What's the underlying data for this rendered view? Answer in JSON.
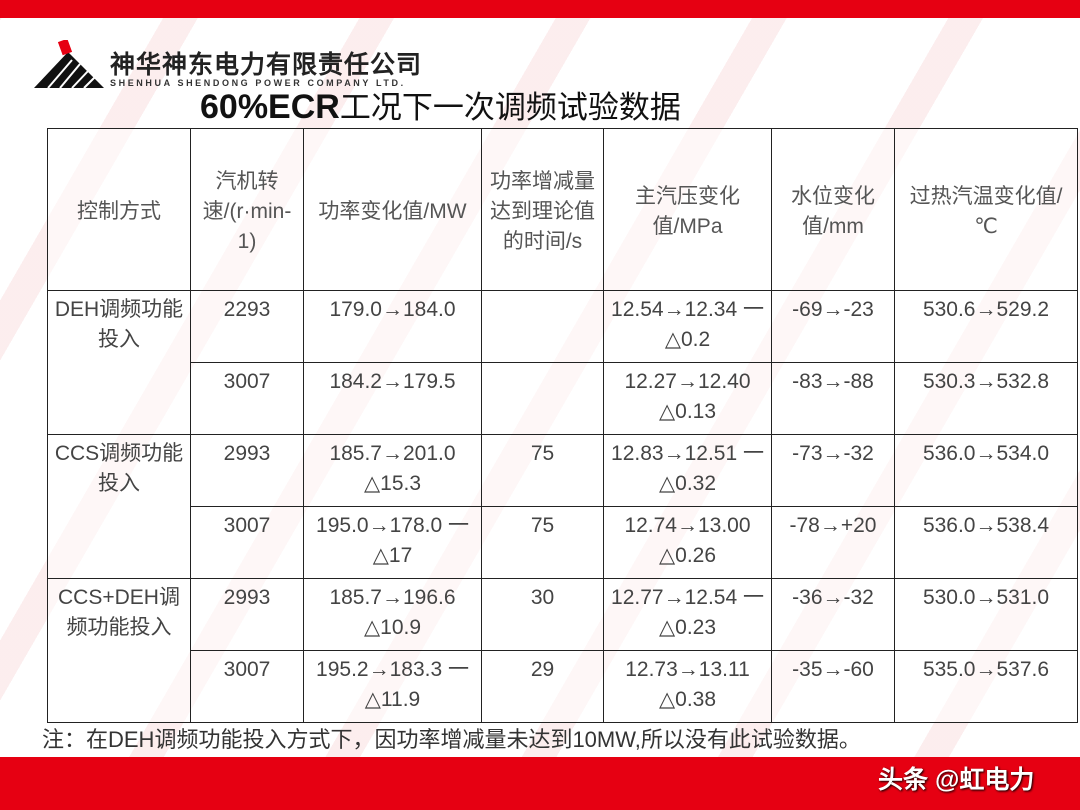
{
  "header": {
    "company_cn": "神华神东电力有限责任公司",
    "company_en": "SHENHUA SHENDONG POWER COMPANY LTD.",
    "title_bold": "60%ECR",
    "title_rest": "工况下一次调频试验数据"
  },
  "table": {
    "headers": [
      "控制方式",
      "汽机转速/(r·min-1)",
      "功率变化值/MW",
      "功率增减量达到理论值的时间/s",
      "主汽压变化值/MPa",
      "水位变化值/mm",
      "过热汽温变化值/℃"
    ],
    "groups": [
      {
        "mode": "DEH调频功能投入",
        "rows": [
          [
            "2293",
            "179.0→184.0",
            "",
            "12.54→12.34 一 △0.2",
            "-69→-23",
            "530.6→529.2"
          ],
          [
            "3007",
            "184.2→179.5",
            "",
            "12.27→12.40 △0.13",
            "-83→-88",
            "530.3→532.8"
          ]
        ]
      },
      {
        "mode": "CCS调频功能投入",
        "rows": [
          [
            "2993",
            "185.7→201.0 △15.3",
            "75",
            "12.83→12.51 一 △0.32",
            "-73→-32",
            "536.0→534.0"
          ],
          [
            "3007",
            "195.0→178.0 一△17",
            "75",
            "12.74→13.00 △0.26",
            "-78→+20",
            "536.0→538.4"
          ]
        ]
      },
      {
        "mode": "CCS+DEH调频功能投入",
        "rows": [
          [
            "2993",
            "185.7→196.6 △10.9",
            "30",
            "12.77→12.54 一 △0.23",
            "-36→-32",
            "530.0→531.0"
          ],
          [
            "3007",
            "195.2→183.3 一△11.9",
            "29",
            "12.73→13.11 △0.38",
            "-35→-60",
            "535.0→537.6"
          ]
        ]
      }
    ]
  },
  "note": "注：在DEH调频功能投入方式下，因功率增减量未达到10MW,所以没有此试验数据。",
  "watermark": "头条 @虹电力",
  "colors": {
    "brand_red": "#e60012"
  }
}
